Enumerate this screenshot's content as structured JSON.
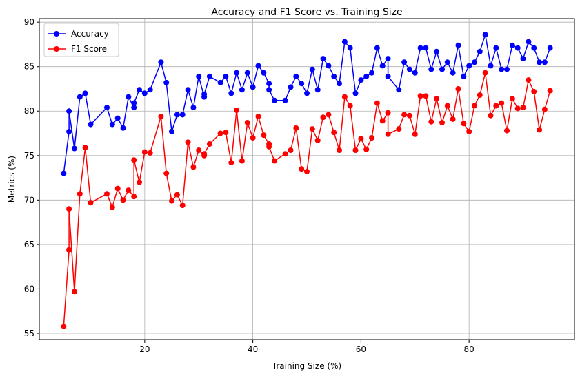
{
  "chart_data": {
    "type": "line",
    "title": "Accuracy and F1 Score vs. Training Size",
    "xlabel": "Training Size (%)",
    "ylabel": "Metrics (%)",
    "xlim": [
      0.5,
      99.5
    ],
    "ylim": [
      54.3,
      90.4
    ],
    "xticks": [
      20,
      40,
      60,
      80
    ],
    "yticks": [
      55,
      60,
      65,
      70,
      75,
      80,
      85,
      90
    ],
    "grid": true,
    "legend_position": "upper-left",
    "x": [
      5,
      6,
      6,
      7,
      8,
      9,
      10,
      13,
      14,
      15,
      16,
      17,
      18,
      18,
      19,
      20,
      21,
      23,
      24,
      25,
      26,
      27,
      28,
      29,
      30,
      31,
      31,
      32,
      34,
      35,
      36,
      37,
      38,
      39,
      40,
      41,
      42,
      43,
      43,
      44,
      46,
      47,
      48,
      49,
      50,
      51,
      52,
      53,
      54,
      55,
      56,
      57,
      58,
      59,
      60,
      61,
      62,
      63,
      64,
      65,
      65,
      67,
      68,
      69,
      70,
      71,
      72,
      73,
      74,
      75,
      76,
      77,
      78,
      79,
      80,
      81,
      82,
      83,
      84,
      85,
      86,
      87,
      88,
      89,
      90,
      91,
      92,
      93,
      94,
      95
    ],
    "series": [
      {
        "name": "Accuracy",
        "color": "#0000ff",
        "values": [
          73.0,
          77.7,
          80.0,
          75.8,
          81.6,
          82.0,
          78.5,
          80.4,
          78.5,
          79.2,
          78.1,
          81.6,
          80.4,
          80.9,
          82.4,
          82.0,
          82.4,
          85.5,
          83.2,
          77.7,
          79.6,
          79.6,
          82.4,
          80.4,
          83.9,
          81.6,
          81.9,
          83.9,
          83.2,
          83.9,
          82.0,
          84.3,
          82.4,
          84.3,
          82.7,
          85.1,
          84.3,
          83.1,
          82.4,
          81.2,
          81.2,
          82.7,
          83.9,
          83.1,
          82.0,
          84.7,
          82.4,
          85.9,
          85.1,
          83.9,
          83.1,
          87.8,
          87.1,
          82.0,
          83.5,
          83.9,
          84.3,
          87.1,
          85.1,
          85.9,
          83.9,
          82.4,
          85.5,
          84.7,
          84.3,
          87.1,
          87.1,
          84.7,
          86.7,
          84.7,
          85.5,
          84.3,
          87.4,
          83.9,
          85.1,
          85.5,
          86.7,
          88.6,
          85.1,
          87.1,
          84.7,
          84.7,
          87.4,
          87.1,
          85.9,
          87.8,
          87.1,
          85.5,
          85.5,
          87.1
        ]
      },
      {
        "name": "F1 Score",
        "color": "#ff0000",
        "values": [
          55.8,
          64.4,
          69.0,
          59.7,
          70.7,
          75.9,
          69.7,
          70.7,
          69.2,
          71.3,
          70.0,
          71.1,
          70.4,
          74.5,
          72.0,
          75.4,
          75.3,
          79.4,
          73.0,
          69.9,
          70.6,
          69.4,
          76.5,
          73.7,
          75.6,
          75.0,
          75.2,
          76.3,
          77.5,
          77.6,
          74.2,
          80.1,
          74.4,
          78.7,
          77.0,
          79.4,
          77.3,
          76.3,
          76.0,
          74.4,
          75.2,
          75.6,
          78.1,
          73.5,
          73.2,
          78.0,
          76.7,
          79.3,
          79.6,
          77.6,
          75.6,
          81.6,
          80.6,
          75.6,
          76.9,
          75.7,
          77.0,
          80.9,
          78.9,
          79.8,
          77.4,
          78.0,
          79.6,
          79.5,
          77.4,
          81.7,
          81.7,
          78.8,
          81.4,
          78.7,
          80.6,
          79.1,
          82.5,
          78.6,
          77.7,
          80.6,
          81.8,
          84.3,
          79.5,
          80.6,
          80.9,
          77.8,
          81.4,
          80.3,
          80.4,
          83.5,
          82.2,
          77.9,
          80.2,
          82.3
        ]
      }
    ]
  }
}
